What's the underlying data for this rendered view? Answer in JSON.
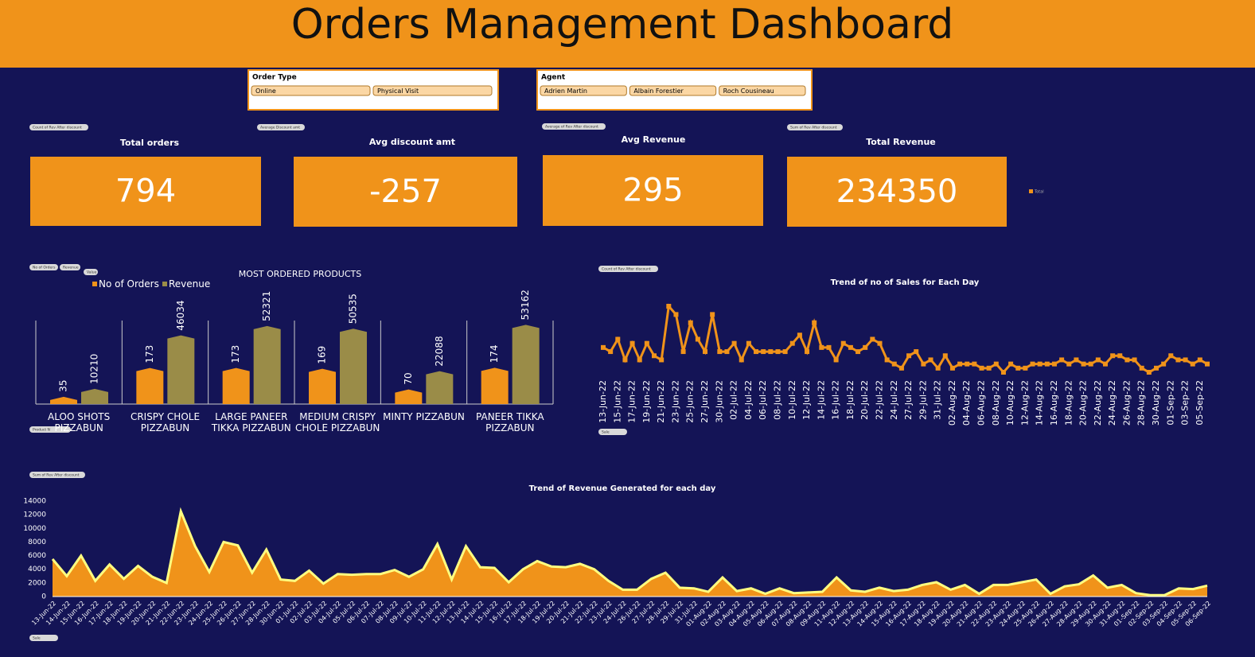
{
  "header": {
    "title": "Orders Management Dashboard"
  },
  "slicers": [
    {
      "title": "Order Type",
      "items": [
        "Online",
        "Physical Visit"
      ]
    },
    {
      "title": "Agent",
      "items": [
        "Adrien Martin",
        "Albain Forestier",
        "Roch Cousineau"
      ]
    }
  ],
  "kpis": [
    {
      "label": "Total orders",
      "value": 794
    },
    {
      "label": "Avg discount amt",
      "value": -257
    },
    {
      "label": "Avg Revenue",
      "value": 295
    },
    {
      "label": "Total Revenue",
      "value": 234350
    }
  ],
  "kpi_legend": "Total",
  "pivot_buttons": [
    "Count of Rev After discount",
    "Average Discount amt",
    "Average of Rev After discount",
    "Sum of Rev After discount",
    "No of Orders",
    "Revenue",
    "Value",
    "Product N",
    "Count of Rev After discount",
    "Sale",
    "Sum of Rev After discount",
    "Sale"
  ],
  "chart_data": [
    {
      "type": "bar",
      "title": "MOST ORDERED PRODUCTS",
      "categories": [
        "ALOO SHOTS PIZZABUN",
        "CRISPY CHOLE PIZZABUN",
        "LARGE PANEER TIKKA PIZZABUN",
        "MEDIUM CRISPY CHOLE PIZZABUN",
        "MINTY PIZZABUN",
        "PANEER TIKKA PIZZABUN"
      ],
      "ylim": [
        0,
        400
      ],
      "y2lim": [
        0,
        56000
      ],
      "series": [
        {
          "name": "No of Orders",
          "color": "#f0931a",
          "values": [
            35,
            173,
            173,
            169,
            70,
            174
          ]
        },
        {
          "name": "Revenue",
          "color": "#9a8c48",
          "axis": "y2",
          "values": [
            10210,
            46034,
            52321,
            50535,
            22088,
            53162
          ]
        }
      ]
    },
    {
      "type": "line",
      "title": "Trend of no of Sales for Each Day",
      "color": "#f0931a",
      "categories": [
        "13-Jun-22",
        null,
        "15-Jun-22",
        null,
        "17-Jun-22",
        null,
        "19-Jun-22",
        null,
        "21-Jun-22",
        null,
        "23-Jun-22",
        null,
        "25-Jun-22",
        null,
        "27-Jun-22",
        null,
        "30-Jun-22",
        null,
        "02-Jul-22",
        null,
        "04-Jul-22",
        null,
        "06-Jul-22",
        null,
        "08-Jul-22",
        null,
        "10-Jul-22",
        null,
        "12-Jul-22",
        null,
        "14-Jul-22",
        null,
        "16-Jul-22",
        null,
        "18-Jul-22",
        null,
        "20-Jul-22",
        null,
        "22-Jul-22",
        null,
        "24-Jul-22",
        null,
        "27-Jul-22",
        null,
        "29-Jul-22",
        null,
        "31-Jul-22",
        null,
        "02-Aug-22",
        null,
        "04-Aug-22",
        null,
        "06-Aug-22",
        null,
        "08-Aug-22",
        null,
        "10-Aug-22",
        null,
        "12-Aug-22",
        null,
        "14-Aug-22",
        null,
        "16-Aug-22",
        null,
        "18-Aug-22",
        null,
        "20-Aug-22",
        null,
        "22-Aug-22",
        null,
        "24-Aug-22",
        null,
        "26-Aug-22",
        null,
        "28-Aug-22",
        null,
        "30-Aug-22",
        null,
        "01-Sep-22",
        null,
        "03-Sep-22",
        null,
        "05-Sep-22",
        null
      ],
      "values": [
        11,
        10,
        13,
        8,
        12,
        8,
        12,
        9,
        8,
        21,
        19,
        10,
        17,
        13,
        10,
        19,
        10,
        10,
        12,
        8,
        12,
        10,
        10,
        10,
        10,
        10,
        12,
        14,
        10,
        17,
        11,
        11,
        8,
        12,
        11,
        10,
        11,
        13,
        12,
        8,
        7,
        6,
        9,
        10,
        7,
        8,
        6,
        9,
        6,
        7,
        7,
        7,
        6,
        6,
        7,
        5,
        7,
        6,
        6,
        7,
        7,
        7,
        7,
        8,
        7,
        8,
        7,
        7,
        8,
        7,
        9,
        9,
        8,
        8,
        6,
        5,
        6,
        7,
        9,
        8,
        8,
        7,
        8,
        7
      ]
    },
    {
      "type": "area",
      "title": "Trend of Revenue Generated for each day",
      "color": "#f0931a",
      "line_color": "#ffff80",
      "categories": [
        "13-Jun-22",
        "14-Jun-22",
        "15-Jun-22",
        "16-Jun-22",
        "17-Jun-22",
        "18-Jun-22",
        "19-Jun-22",
        "20-Jun-22",
        "21-Jun-22",
        "22-Jun-22",
        "23-Jun-22",
        "24-Jun-22",
        "25-Jun-22",
        "26-Jun-22",
        "27-Jun-22",
        "28-Jun-22",
        "30-Jun-22",
        "01-Jul-22",
        "02-Jul-22",
        "03-Jul-22",
        "04-Jul-22",
        "05-Jul-22",
        "06-Jul-22",
        "07-Jul-22",
        "08-Jul-22",
        "09-Jul-22",
        "10-Jul-22",
        "11-Jul-22",
        "12-Jul-22",
        "13-Jul-22",
        "14-Jul-22",
        "15-Jul-22",
        "16-Jul-22",
        "17-Jul-22",
        "18-Jul-22",
        "19-Jul-22",
        "20-Jul-22",
        "21-Jul-22",
        "22-Jul-22",
        "23-Jul-22",
        "24-Jul-22",
        "26-Jul-22",
        "27-Jul-22",
        "28-Jul-22",
        "29-Jul-22",
        "31-Jul-22",
        "01-Aug-22",
        "02-Aug-22",
        "03-Aug-22",
        "04-Aug-22",
        "05-Aug-22",
        "06-Aug-22",
        "07-Aug-22",
        "08-Aug-22",
        "09-Aug-22",
        "11-Aug-22",
        "12-Aug-22",
        "13-Aug-22",
        "14-Aug-22",
        "15-Aug-22",
        "16-Aug-22",
        "17-Aug-22",
        "18-Aug-22",
        "19-Aug-22",
        "20-Aug-22",
        "21-Aug-22",
        "22-Aug-22",
        "23-Aug-22",
        "24-Aug-22",
        "25-Aug-22",
        "26-Aug-22",
        "27-Aug-22",
        "28-Aug-22",
        "29-Aug-22",
        "30-Aug-22",
        "31-Aug-22",
        "01-Sep-22",
        "02-Sep-22",
        "03-Sep-22",
        "04-Sep-22",
        "05-Sep-22",
        "06-Sep-22"
      ],
      "values": [
        5500,
        3000,
        6000,
        2300,
        4700,
        2600,
        4500,
        2900,
        2000,
        12500,
        7400,
        3600,
        8000,
        7500,
        3500,
        6900,
        2500,
        2300,
        3800,
        1900,
        3300,
        3200,
        3300,
        3300,
        3900,
        2900,
        4000,
        7700,
        2500,
        7400,
        4300,
        4200,
        2100,
        4000,
        5200,
        4400,
        4300,
        4800,
        4000,
        2300,
        1000,
        1000,
        2600,
        3500,
        1300,
        1200,
        700,
        2800,
        800,
        1200,
        400,
        1200,
        500,
        600,
        700,
        2800,
        900,
        700,
        1300,
        800,
        1000,
        1700,
        2100,
        1000,
        1700,
        400,
        1700,
        1700,
        2100,
        2500,
        400,
        1500,
        1800,
        3100,
        1300,
        1700,
        500,
        200,
        200,
        1200,
        1100,
        1600
      ],
      "ylim": [
        0,
        14000
      ],
      "yticks": [
        0,
        2000,
        4000,
        6000,
        8000,
        10000,
        12000,
        14000
      ]
    }
  ]
}
